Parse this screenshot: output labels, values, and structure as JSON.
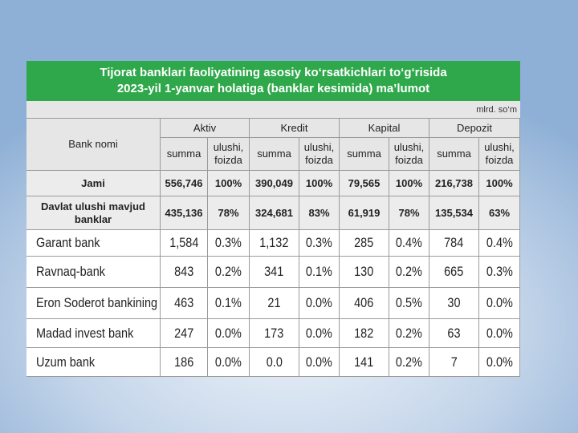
{
  "header": {
    "title": [
      "Tijorat banklari faoliyatining asosiy ko‘rsatkichlari to‘g‘risida",
      "2023-yil 1-yanvar holatiga (banklar kesimida) ma’lumot"
    ],
    "unit": "mlrd. so‘m"
  },
  "table": {
    "first_column": "Bank nomi",
    "groups": [
      "Aktiv",
      "Kredit",
      "Kapital",
      "Depozit"
    ],
    "subheaders": [
      "summa",
      "ulushi, foizda"
    ],
    "summary_rows": [
      [
        "Jami",
        "556,746",
        "100%",
        "390,049",
        "100%",
        "79,565",
        "100%",
        "216,738",
        "100%"
      ],
      [
        "Davlat ulushi mavjud banklar",
        "435,136",
        "78%",
        "324,681",
        "83%",
        "61,919",
        "78%",
        "135,534",
        "63%"
      ]
    ],
    "rows": [
      [
        "Garant bank",
        "1,584",
        "0.3%",
        "1,132",
        "0.3%",
        "285",
        "0.4%",
        "784",
        "0.4%"
      ],
      [
        "Ravnaq-bank",
        "843",
        "0.2%",
        "341",
        "0.1%",
        "130",
        "0.2%",
        "665",
        "0.3%"
      ],
      [
        "Eron Soderot bankining Sh",
        "463",
        "0.1%",
        "21",
        "0.0%",
        "406",
        "0.5%",
        "30",
        "0.0%"
      ],
      [
        "Madad invest bank",
        "247",
        "0.0%",
        "173",
        "0.0%",
        "182",
        "0.2%",
        "63",
        "0.0%"
      ],
      [
        "Uzum bank",
        "186",
        "0.0%",
        "0.0",
        "0.0%",
        "141",
        "0.2%",
        "7",
        "0.0%"
      ]
    ]
  }
}
